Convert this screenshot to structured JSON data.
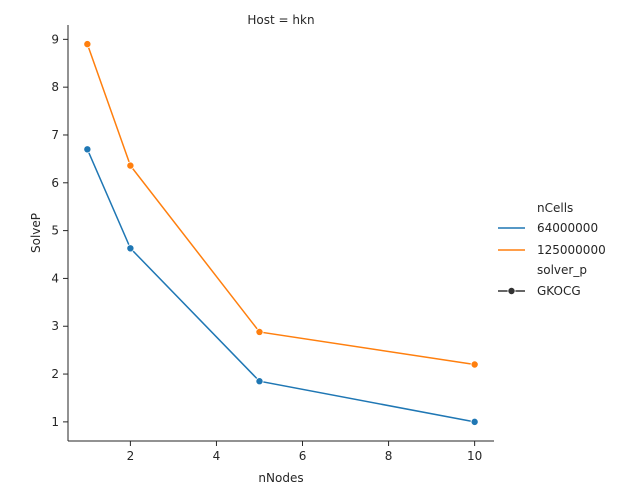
{
  "chart_data": {
    "type": "line",
    "title": "Host = hkn",
    "xlabel": "nNodes",
    "ylabel": "SolveP",
    "x": [
      1,
      2,
      5,
      10
    ],
    "series": [
      {
        "name": "64000000",
        "color": "#1f77b4",
        "values": [
          6.7,
          4.63,
          1.85,
          1.0
        ]
      },
      {
        "name": "125000000",
        "color": "#ff7f0e",
        "values": [
          8.9,
          6.36,
          2.88,
          2.2
        ]
      }
    ],
    "xlim": [
      0.55,
      10.45
    ],
    "ylim": [
      0.6,
      9.3
    ],
    "xticks": [
      2,
      4,
      6,
      8,
      10
    ],
    "yticks": [
      1,
      2,
      3,
      4,
      5,
      6,
      7,
      8,
      9
    ],
    "grid": false,
    "legend": {
      "placement": "right",
      "hue_title": "nCells",
      "style_title": "solver_p",
      "style_entries": [
        {
          "label": "GKOCG",
          "color": "#333333",
          "marker": "circle"
        }
      ]
    }
  }
}
